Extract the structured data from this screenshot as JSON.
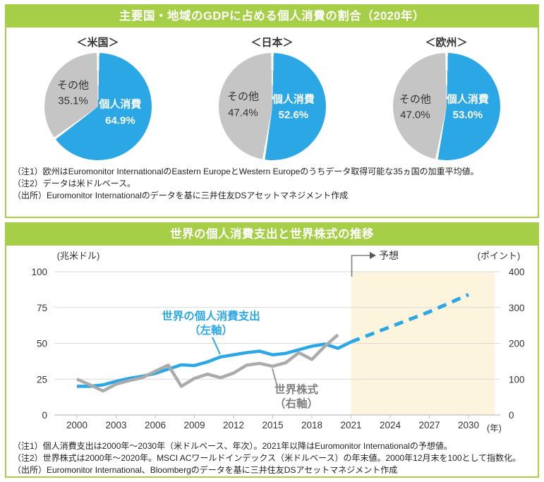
{
  "colors": {
    "green": "#A6CE47",
    "blue": "#2AA7E4",
    "pie_gray": "#C5C5C5",
    "line_gray": "#ABABAB",
    "gray_label": "#7F7F7F",
    "forecast_fill": "#FCF4DC",
    "grid": "#D9D9D9",
    "axis": "#BFBFBF"
  },
  "panel_top": {
    "title": "主要国・地域のGDPに占める個人消費の割合（2020年）",
    "notes": [
      "（注1）欧州はEuromonitor InternationalのEastern EuropeとWestern Europeのうちデータ取得可能な35ヵ国の加重平均値。",
      "（注2）データは米ドルベース。",
      "（出所）Euromonitor Internationalのデータを基に三井住友DSアセットマネジメント作成"
    ]
  },
  "panel_bottom": {
    "title": "世界の個人消費支出と世界株式の推移",
    "notes": [
      "（注1）個人消費支出は2000年～2030年（米ドルベース、年次）。2021年以降はEuromonitor  Internationalの予想値。",
      "（注2）世界株式は2000年～2020年。MSCI ACワールドインデックス（米ドルベース）の年末値。2000年12月末を100として指数化。",
      "（出所）Euromonitor International、Bloombergのデータを基に三井住友DSアセットマネジメント作成"
    ]
  },
  "chart_data": [
    {
      "type": "pie",
      "title": "＜米国＞",
      "labels": [
        "個人消費",
        "その他"
      ],
      "values": [
        64.9,
        35.1
      ],
      "value_labels": [
        "64.9%",
        "35.1%"
      ]
    },
    {
      "type": "pie",
      "title": "＜日本＞",
      "labels": [
        "個人消費",
        "その他"
      ],
      "values": [
        52.6,
        47.4
      ],
      "value_labels": [
        "52.6%",
        "47.4%"
      ]
    },
    {
      "type": "pie",
      "title": "＜欧州＞",
      "labels": [
        "個人消費",
        "その他"
      ],
      "values": [
        53.0,
        47.0
      ],
      "value_labels": [
        "53.0%",
        "47.0%"
      ]
    },
    {
      "type": "line",
      "title": "世界の個人消費支出と世界株式の推移",
      "x": [
        2000,
        2001,
        2002,
        2003,
        2004,
        2005,
        2006,
        2007,
        2008,
        2009,
        2010,
        2011,
        2012,
        2013,
        2014,
        2015,
        2016,
        2017,
        2018,
        2019,
        2020,
        2021,
        2022,
        2023,
        2024,
        2025,
        2026,
        2027,
        2028,
        2029,
        2030
      ],
      "x_ticks": [
        2000,
        2003,
        2006,
        2009,
        2012,
        2015,
        2018,
        2021,
        2024,
        2027,
        2030
      ],
      "x_axis_suffix": "(年)",
      "left_axis": {
        "label": "(兆米ドル)",
        "min": 0,
        "max": 100,
        "ticks": [
          0,
          25,
          50,
          75,
          100
        ]
      },
      "right_axis": {
        "label": "(ポイント)",
        "min": 0,
        "max": 400,
        "ticks": [
          0,
          100,
          200,
          300,
          400
        ]
      },
      "grid": "horizontal",
      "forecast_region": {
        "start": 2021,
        "label": "予想",
        "fill": "#FCF4DC"
      },
      "series": [
        {
          "name": "世界の個人消費支出（左軸）",
          "label_lines": [
            "世界の個人消費支出",
            "（左軸）"
          ],
          "axis": "left",
          "color": "#2AA7E4",
          "forecast_from": 2021,
          "values": [
            20,
            20,
            21,
            23.5,
            25.5,
            27,
            29,
            32,
            35,
            34.5,
            37,
            40.5,
            42,
            43.5,
            44.5,
            42,
            43,
            45.5,
            48,
            49.5,
            46.5,
            51,
            54.5,
            58,
            61.5,
            65,
            68.5,
            72,
            76,
            80,
            84
          ]
        },
        {
          "name": "世界株式（右軸）",
          "label_lines": [
            "世界株式",
            "（右軸）"
          ],
          "axis": "right",
          "color": "#ABABAB",
          "values": [
            100,
            84,
            67,
            86,
            96,
            104,
            122,
            139,
            80,
            102,
            114,
            104,
            117,
            139,
            144,
            136,
            146,
            174,
            155,
            192,
            224
          ]
        }
      ]
    }
  ]
}
